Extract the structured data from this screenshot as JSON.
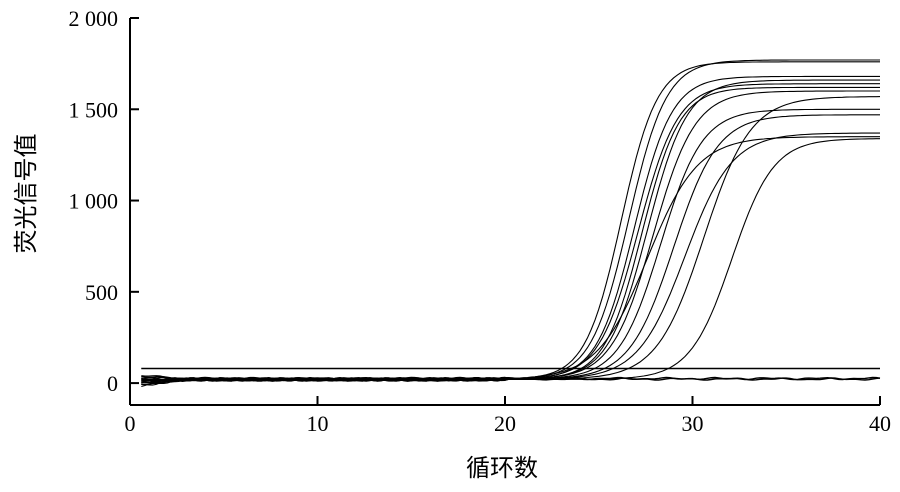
{
  "chart_data": {
    "type": "line",
    "xlabel": "循环数",
    "ylabel": "荧光信号值",
    "xlim": [
      0,
      40
    ],
    "ylim": [
      -120,
      2000
    ],
    "x_ticks": [
      0,
      10,
      20,
      30,
      40
    ],
    "x_tick_labels": [
      "0",
      "10",
      "20",
      "30",
      "40"
    ],
    "y_ticks": [
      0,
      500,
      1000,
      1500,
      2000
    ],
    "y_tick_labels": [
      "0",
      "500",
      "1 000",
      "1 500",
      "2 000"
    ],
    "grid": false,
    "threshold": 80,
    "series_style": "black",
    "series": [
      {
        "baseline": 20,
        "plateau": 1740,
        "midpoint": 26.2,
        "slope": 1.05
      },
      {
        "baseline": 20,
        "plateau": 1750,
        "midpoint": 26.6,
        "slope": 1.0
      },
      {
        "baseline": 20,
        "plateau": 1660,
        "midpoint": 26.9,
        "slope": 1.0
      },
      {
        "baseline": 20,
        "plateau": 1620,
        "midpoint": 27.1,
        "slope": 0.95
      },
      {
        "baseline": 20,
        "plateau": 1600,
        "midpoint": 27.3,
        "slope": 1.0
      },
      {
        "baseline": 20,
        "plateau": 1640,
        "midpoint": 27.6,
        "slope": 0.95
      },
      {
        "baseline": 20,
        "plateau": 1580,
        "midpoint": 27.9,
        "slope": 0.9
      },
      {
        "baseline": 20,
        "plateau": 1480,
        "midpoint": 28.3,
        "slope": 0.9
      },
      {
        "baseline": 20,
        "plateau": 1450,
        "midpoint": 29.0,
        "slope": 0.85
      },
      {
        "baseline": 20,
        "plateau": 1330,
        "midpoint": 27.6,
        "slope": 0.75
      },
      {
        "baseline": 20,
        "plateau": 1350,
        "midpoint": 29.6,
        "slope": 0.8
      },
      {
        "baseline": 20,
        "plateau": 1550,
        "midpoint": 30.6,
        "slope": 0.8
      },
      {
        "baseline": 20,
        "plateau": 1320,
        "midpoint": 32.1,
        "slope": 0.9
      },
      {
        "baseline": 22,
        "flat": true
      },
      {
        "baseline": 25,
        "flat": true
      }
    ]
  }
}
